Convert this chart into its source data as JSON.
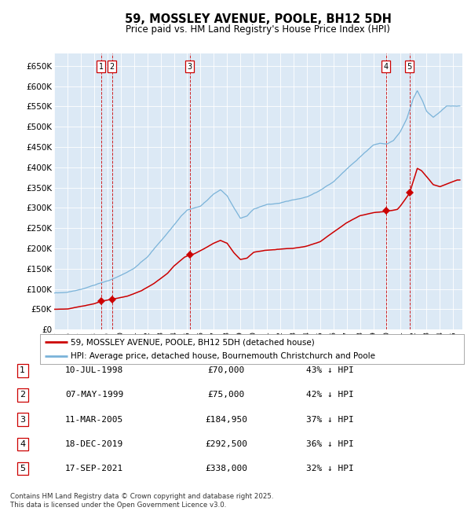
{
  "title": "59, MOSSLEY AVENUE, POOLE, BH12 5DH",
  "subtitle": "Price paid vs. HM Land Registry's House Price Index (HPI)",
  "hpi_color": "#7ab3d9",
  "price_color": "#cc0000",
  "plot_bg": "#dce9f5",
  "ylim": [
    0,
    680000
  ],
  "yticks": [
    0,
    50000,
    100000,
    150000,
    200000,
    250000,
    300000,
    350000,
    400000,
    450000,
    500000,
    550000,
    600000,
    650000
  ],
  "transactions": [
    {
      "num": 1,
      "date": "10-JUL-1998",
      "price": 70000,
      "x_year": 1998.52
    },
    {
      "num": 2,
      "date": "07-MAY-1999",
      "price": 75000,
      "x_year": 1999.35
    },
    {
      "num": 3,
      "date": "11-MAR-2005",
      "price": 184950,
      "x_year": 2005.19
    },
    {
      "num": 4,
      "date": "18-DEC-2019",
      "price": 292500,
      "x_year": 2019.96
    },
    {
      "num": 5,
      "date": "17-SEP-2021",
      "price": 338000,
      "x_year": 2021.71
    }
  ],
  "table_rows": [
    {
      "num": 1,
      "date": "10-JUL-1998",
      "price": "£70,000",
      "pct": "43% ↓ HPI"
    },
    {
      "num": 2,
      "date": "07-MAY-1999",
      "price": "£75,000",
      "pct": "42% ↓ HPI"
    },
    {
      "num": 3,
      "date": "11-MAR-2005",
      "price": "£184,950",
      "pct": "37% ↓ HPI"
    },
    {
      "num": 4,
      "date": "18-DEC-2019",
      "price": "£292,500",
      "pct": "36% ↓ HPI"
    },
    {
      "num": 5,
      "date": "17-SEP-2021",
      "price": "£338,000",
      "pct": "32% ↓ HPI"
    }
  ],
  "legend_line1": "59, MOSSLEY AVENUE, POOLE, BH12 5DH (detached house)",
  "legend_line2": "HPI: Average price, detached house, Bournemouth Christchurch and Poole",
  "footer": "Contains HM Land Registry data © Crown copyright and database right 2025.\nThis data is licensed under the Open Government Licence v3.0.",
  "xmin": 1995.0,
  "xmax": 2025.7
}
